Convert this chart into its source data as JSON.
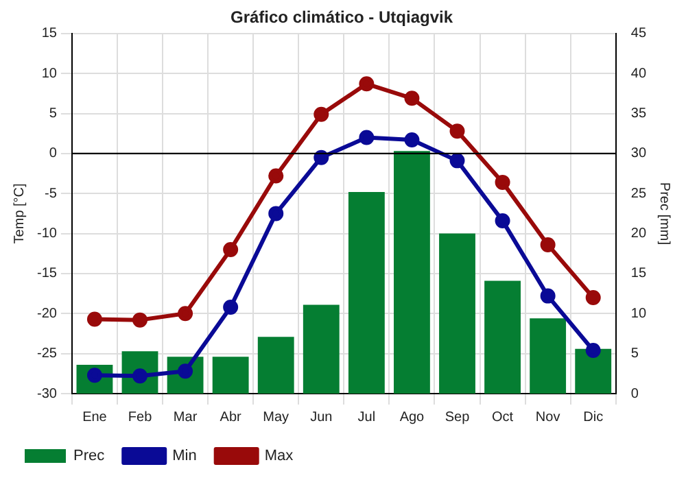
{
  "chart_data": {
    "type": "bar",
    "title": "Gráfico climático - Utqiagvik",
    "ylabel": "Temp [°C]",
    "y2label": "Prec [mm]",
    "categories": [
      "Ene",
      "Feb",
      "Mar",
      "Abr",
      "May",
      "Jun",
      "Jul",
      "Ago",
      "Sep",
      "Oct",
      "Nov",
      "Dic"
    ],
    "series": [
      {
        "name": "Prec",
        "axis": "y2",
        "color": "#057e32",
        "values": [
          3.6,
          5.3,
          4.6,
          4.6,
          7.1,
          11.1,
          25.2,
          30.3,
          20,
          14.1,
          9.4,
          5.6
        ]
      },
      {
        "name": "Min",
        "type": "line",
        "color": "#0a0a96",
        "values": [
          -27.7,
          -27.8,
          -27.2,
          -19.2,
          -7.5,
          -0.5,
          2.0,
          1.7,
          -0.9,
          -8.4,
          -17.8,
          -24.6
        ]
      },
      {
        "name": "Max",
        "type": "line",
        "color": "#990a0a",
        "values": [
          -20.7,
          -20.8,
          -20,
          -12,
          -2.8,
          4.9,
          8.7,
          6.9,
          2.8,
          -3.6,
          -11.4,
          -18
        ]
      }
    ],
    "ylim": [
      -30,
      15
    ],
    "yticks": [
      -30,
      -25,
      -20,
      -15,
      -10,
      -5,
      0,
      5,
      10,
      15
    ],
    "y2lim": [
      0,
      45
    ],
    "y2ticks": [
      0,
      5,
      10,
      15,
      20,
      25,
      30,
      35,
      40,
      45
    ],
    "ref_lines": [
      {
        "axis": "y",
        "value": 0,
        "color": "#000000"
      }
    ],
    "grid": true,
    "legend": "bottom left",
    "marker": "circle",
    "line_style": "solid"
  }
}
